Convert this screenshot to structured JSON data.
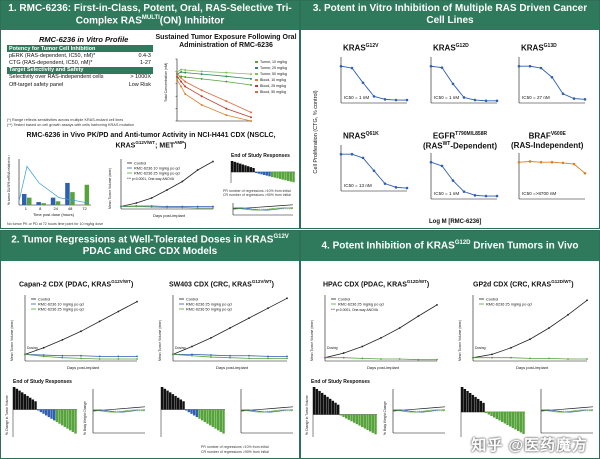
{
  "p1": {
    "title": "1. RMC-6236: First-in-Class, Potent, Oral, RAS-Selective Tri-Complex RAS",
    "title_sup": "MULTI",
    "title_tail": "(ON) Inhibitor",
    "profile_title": "RMC-6236 in Vitro Profile",
    "table": {
      "sec1": "Potency for Tumor Cell Inhibition",
      "row1_label": "pERK (RAS-dependent, IC50, nM)*",
      "row1_val": "0.4-3",
      "row2_label": "CTG (RAS-dependent, IC50, nM)*",
      "row2_val": "1-27",
      "sec2": "Target Selectivity and Safety",
      "row3_label": "Selectivity over RAS-independent cells",
      "row3_val": "> 1000X",
      "row4_label": "Off-target safety panel",
      "row4_val": "Low Risk"
    },
    "foot1": "(*) Range reflects sensitivities across multiple KRAS-mutant cell lines",
    "foot2": "(**) Tested based on cell growth assays with cells harboring KRAS mutation",
    "exposure_title": "Sustained Tumor Exposure Following Oral Administration of RMC-6236",
    "exposure_ylabel": "Total Concentration (nM)",
    "legend": [
      "Tumor, 10 mg/kg",
      "Tumor, 25 mg/kg",
      "Tumor, 50 mg/kg",
      "Blood, 10 mg/kg",
      "Blood, 25 mg/kg",
      "Blood, 50 mg/kg"
    ],
    "pkpd_title": "RMC-6236 in Vivo PK/PD and Anti-tumor Activity in NCI-H441 CDX (NSCLC, KRAS",
    "pkpd_sup1": "G12V/WT",
    "pkpd_mid": "; MET",
    "pkpd_sup2": "AMP",
    "pkpd_tail": ")",
    "pd_ylabel": "% tumor DUSP6 mRNA relative to control",
    "pd_xlabel": "Time post dose (hours)",
    "pd_xticks": [
      "1",
      "8",
      "24",
      "48",
      "72"
    ],
    "pd_note": "No tumor PK or PD at 72 hours time point for 10 mg/kg dose",
    "eff_xlabel": "Days post-implant",
    "eff_ylabel": "Mean Tumor Volume (mm³)",
    "eff_legend": [
      "Control",
      "RMC-6236 10 mg/kg po qd",
      "RMC-6236 25 mg/kg po qd"
    ],
    "eff_note": "*** p<0.0001, One-way ANOVA",
    "eosr": "End of Study Responses",
    "pr_note1": "PR number of regressions >10% from initial",
    "pr_note2": "CR number of regressions >90% from initial"
  },
  "p2": {
    "title": "2. Tumor Regressions at Well-Tolerated Doses in KRAS",
    "title_sup": "G12V",
    "title_tail": "PDAC and CRC CDX Models",
    "left_title": "Capan-2 CDX (PDAC, KRAS",
    "left_sup": "G12V/WT",
    "right_title": "SW403 CDX (CRC, KRAS",
    "right_sup": "G12V/WT",
    "legend_left": [
      "Control",
      "RMC-6236 10 mg/kg po qd",
      "RMC-6236 25 mg/kg po qd"
    ],
    "legend_right": [
      "Control",
      "RMC-6236 25 mg/kg po qd",
      "RMC-6236 50 mg/kg po qd"
    ],
    "xlabel": "Days post-implant",
    "ylabel": "Mean Tumor Volume (mm³)",
    "dosing": "Dosing",
    "eosr": "End of Study Responses",
    "wf_ylabel": "% Change in Tumor Volume",
    "bw_ylabel": "% Body Weight Change",
    "pr_note1": "PR number of regressions >10% from initial",
    "pr_note2": "CR number of regressions >90% from initial"
  },
  "p3": {
    "title": "3. Potent in Vitro Inhibition of Multiple RAS Driven Cancer Cell Lines",
    "ylabel": "Cell Proliferation (CTG, % control)",
    "xlabel": "Log M [RMC-6236]",
    "cells": [
      {
        "name": "KRAS",
        "sup": "G12V",
        "ic50": "IC50 = 1 nM"
      },
      {
        "name": "KRAS",
        "sup": "G12D",
        "ic50": "IC50 = 1 nM"
      },
      {
        "name": "KRAS",
        "sup": "G13D",
        "ic50": "IC50 = 27 nM"
      },
      {
        "name": "NRAS",
        "sup": "Q61K",
        "ic50": "IC50 = 13 nM"
      },
      {
        "name": "EGFR",
        "sup": "T790M/L858R",
        "ic50": "IC50 = 1 nM",
        "sub": "(RAS",
        "sub_sup": "WT",
        "sub_tail": "-Dependent)"
      },
      {
        "name": "BRAF",
        "sup": "V600E",
        "ic50": "IC50 =>8700 nM",
        "sub": "(RAS-Independent)",
        "sub_sup": "",
        "sub_tail": ""
      }
    ]
  },
  "p4": {
    "title": "4. Potent Inhibition of KRAS",
    "title_sup": "G12D",
    "title_tail": " Driven Tumors in Vivo",
    "left_title": "HPAC CDX (PDAC, KRAS",
    "left_sup": "G12D/WT",
    "right_title": "GP2d CDX (CRC, KRAS",
    "right_sup": "G12D/WT",
    "legend_left": [
      "Control",
      "RMC-6236 25 mg/kg po qd"
    ],
    "legend_right": [
      "Control",
      "RMC-6236 25 mg/kg po qd"
    ],
    "note_left": "*** p<0.0001, One-way ANOVA",
    "xlabel": "Days post-implant",
    "ylabel": "Mean Tumor Volume (mm³)",
    "dosing": "Dosing",
    "eosr": "End of Study Responses",
    "wf_ylabel": "% Change in Tumor Volume",
    "bw_ylabel": "% Body Weight Change"
  },
  "watermark": "知乎 @医药魔方",
  "colors": {
    "header": "#2f7a5c",
    "control": "#333333",
    "blue": "#2f5fb3",
    "green": "#56a33b",
    "orange": "#d9822b",
    "red": "#c0392b"
  },
  "chart_data": [
    {
      "type": "line",
      "title": "Sustained Tumor Exposure Following Oral Administration of RMC-6236",
      "ylabel": "Total Concentration (nM)",
      "yscale": "log",
      "ylim": [
        1,
        100000
      ],
      "x": [
        0,
        4,
        8,
        24,
        48,
        72
      ],
      "series": [
        {
          "name": "Tumor, 10 mg/kg",
          "values": [
            3000,
            4000,
            3500,
            2500,
            1500,
            800
          ]
        },
        {
          "name": "Tumor, 25 mg/kg",
          "values": [
            6000,
            9000,
            8000,
            6000,
            4000,
            2500
          ]
        },
        {
          "name": "Tumor, 50 mg/kg",
          "values": [
            9000,
            14000,
            13000,
            10000,
            8000,
            6000
          ]
        },
        {
          "name": "Blood, 10 mg/kg",
          "values": [
            2000,
            600,
            150,
            20,
            3,
            1
          ]
        },
        {
          "name": "Blood, 25 mg/kg",
          "values": [
            4000,
            1500,
            600,
            100,
            10,
            2
          ]
        },
        {
          "name": "Blood, 50 mg/kg",
          "values": [
            7000,
            3000,
            1500,
            300,
            40,
            5
          ]
        }
      ]
    },
    {
      "type": "bar",
      "ylabel": "% tumor DUSP6 mRNA relative to control",
      "xlabel": "Time post dose (hours)",
      "categories": [
        "1",
        "8",
        "24",
        "48",
        "72"
      ],
      "series": [
        {
          "name": "10 mg/kg",
          "values": [
            30,
            8,
            20,
            60,
            0
          ]
        },
        {
          "name": "25 mg/kg",
          "values": [
            20,
            5,
            10,
            35,
            55
          ]
        }
      ],
      "ylim": [
        0,
        125
      ]
    },
    {
      "type": "line",
      "title": "KRAS G12V",
      "xlabel": "Log M [RMC-6236]",
      "ylabel": "Cell Proliferation (CTG, % control)",
      "x": [
        -11,
        -10,
        -9,
        -8,
        -7,
        -6,
        -5
      ],
      "series": [
        {
          "values": [
            100,
            95,
            55,
            18,
            10,
            8,
            8
          ]
        }
      ],
      "ylim": [
        0,
        125
      ]
    },
    {
      "type": "line",
      "title": "KRAS G12D",
      "x": [
        -11,
        -10,
        -9,
        -8,
        -7,
        -6,
        -5
      ],
      "series": [
        {
          "values": [
            100,
            96,
            52,
            15,
            8,
            6,
            6
          ]
        }
      ],
      "ylim": [
        0,
        125
      ]
    },
    {
      "type": "line",
      "title": "KRAS G13D",
      "x": [
        -11,
        -10,
        -9,
        -8,
        -7,
        -6,
        -5
      ],
      "series": [
        {
          "values": [
            100,
            100,
            95,
            70,
            25,
            12,
            10
          ]
        }
      ],
      "ylim": [
        0,
        125
      ]
    },
    {
      "type": "line",
      "title": "NRAS Q61K",
      "x": [
        -11,
        -10,
        -9,
        -8,
        -7,
        -6,
        -5
      ],
      "series": [
        {
          "values": [
            100,
            100,
            90,
            55,
            20,
            10,
            8
          ]
        }
      ],
      "ylim": [
        0,
        125
      ]
    },
    {
      "type": "line",
      "title": "EGFR T790M/L858R",
      "x": [
        -11,
        -10,
        -9,
        -8,
        -7,
        -6,
        -5
      ],
      "series": [
        {
          "values": [
            100,
            90,
            50,
            20,
            10,
            8,
            8
          ]
        }
      ],
      "ylim": [
        0,
        125
      ]
    },
    {
      "type": "line",
      "title": "BRAF V600E",
      "x": [
        -11,
        -10,
        -9,
        -8,
        -7,
        -6,
        -5
      ],
      "series": [
        {
          "values": [
            100,
            102,
            100,
            100,
            98,
            95,
            70
          ]
        }
      ],
      "ylim": [
        0,
        125
      ]
    }
  ]
}
